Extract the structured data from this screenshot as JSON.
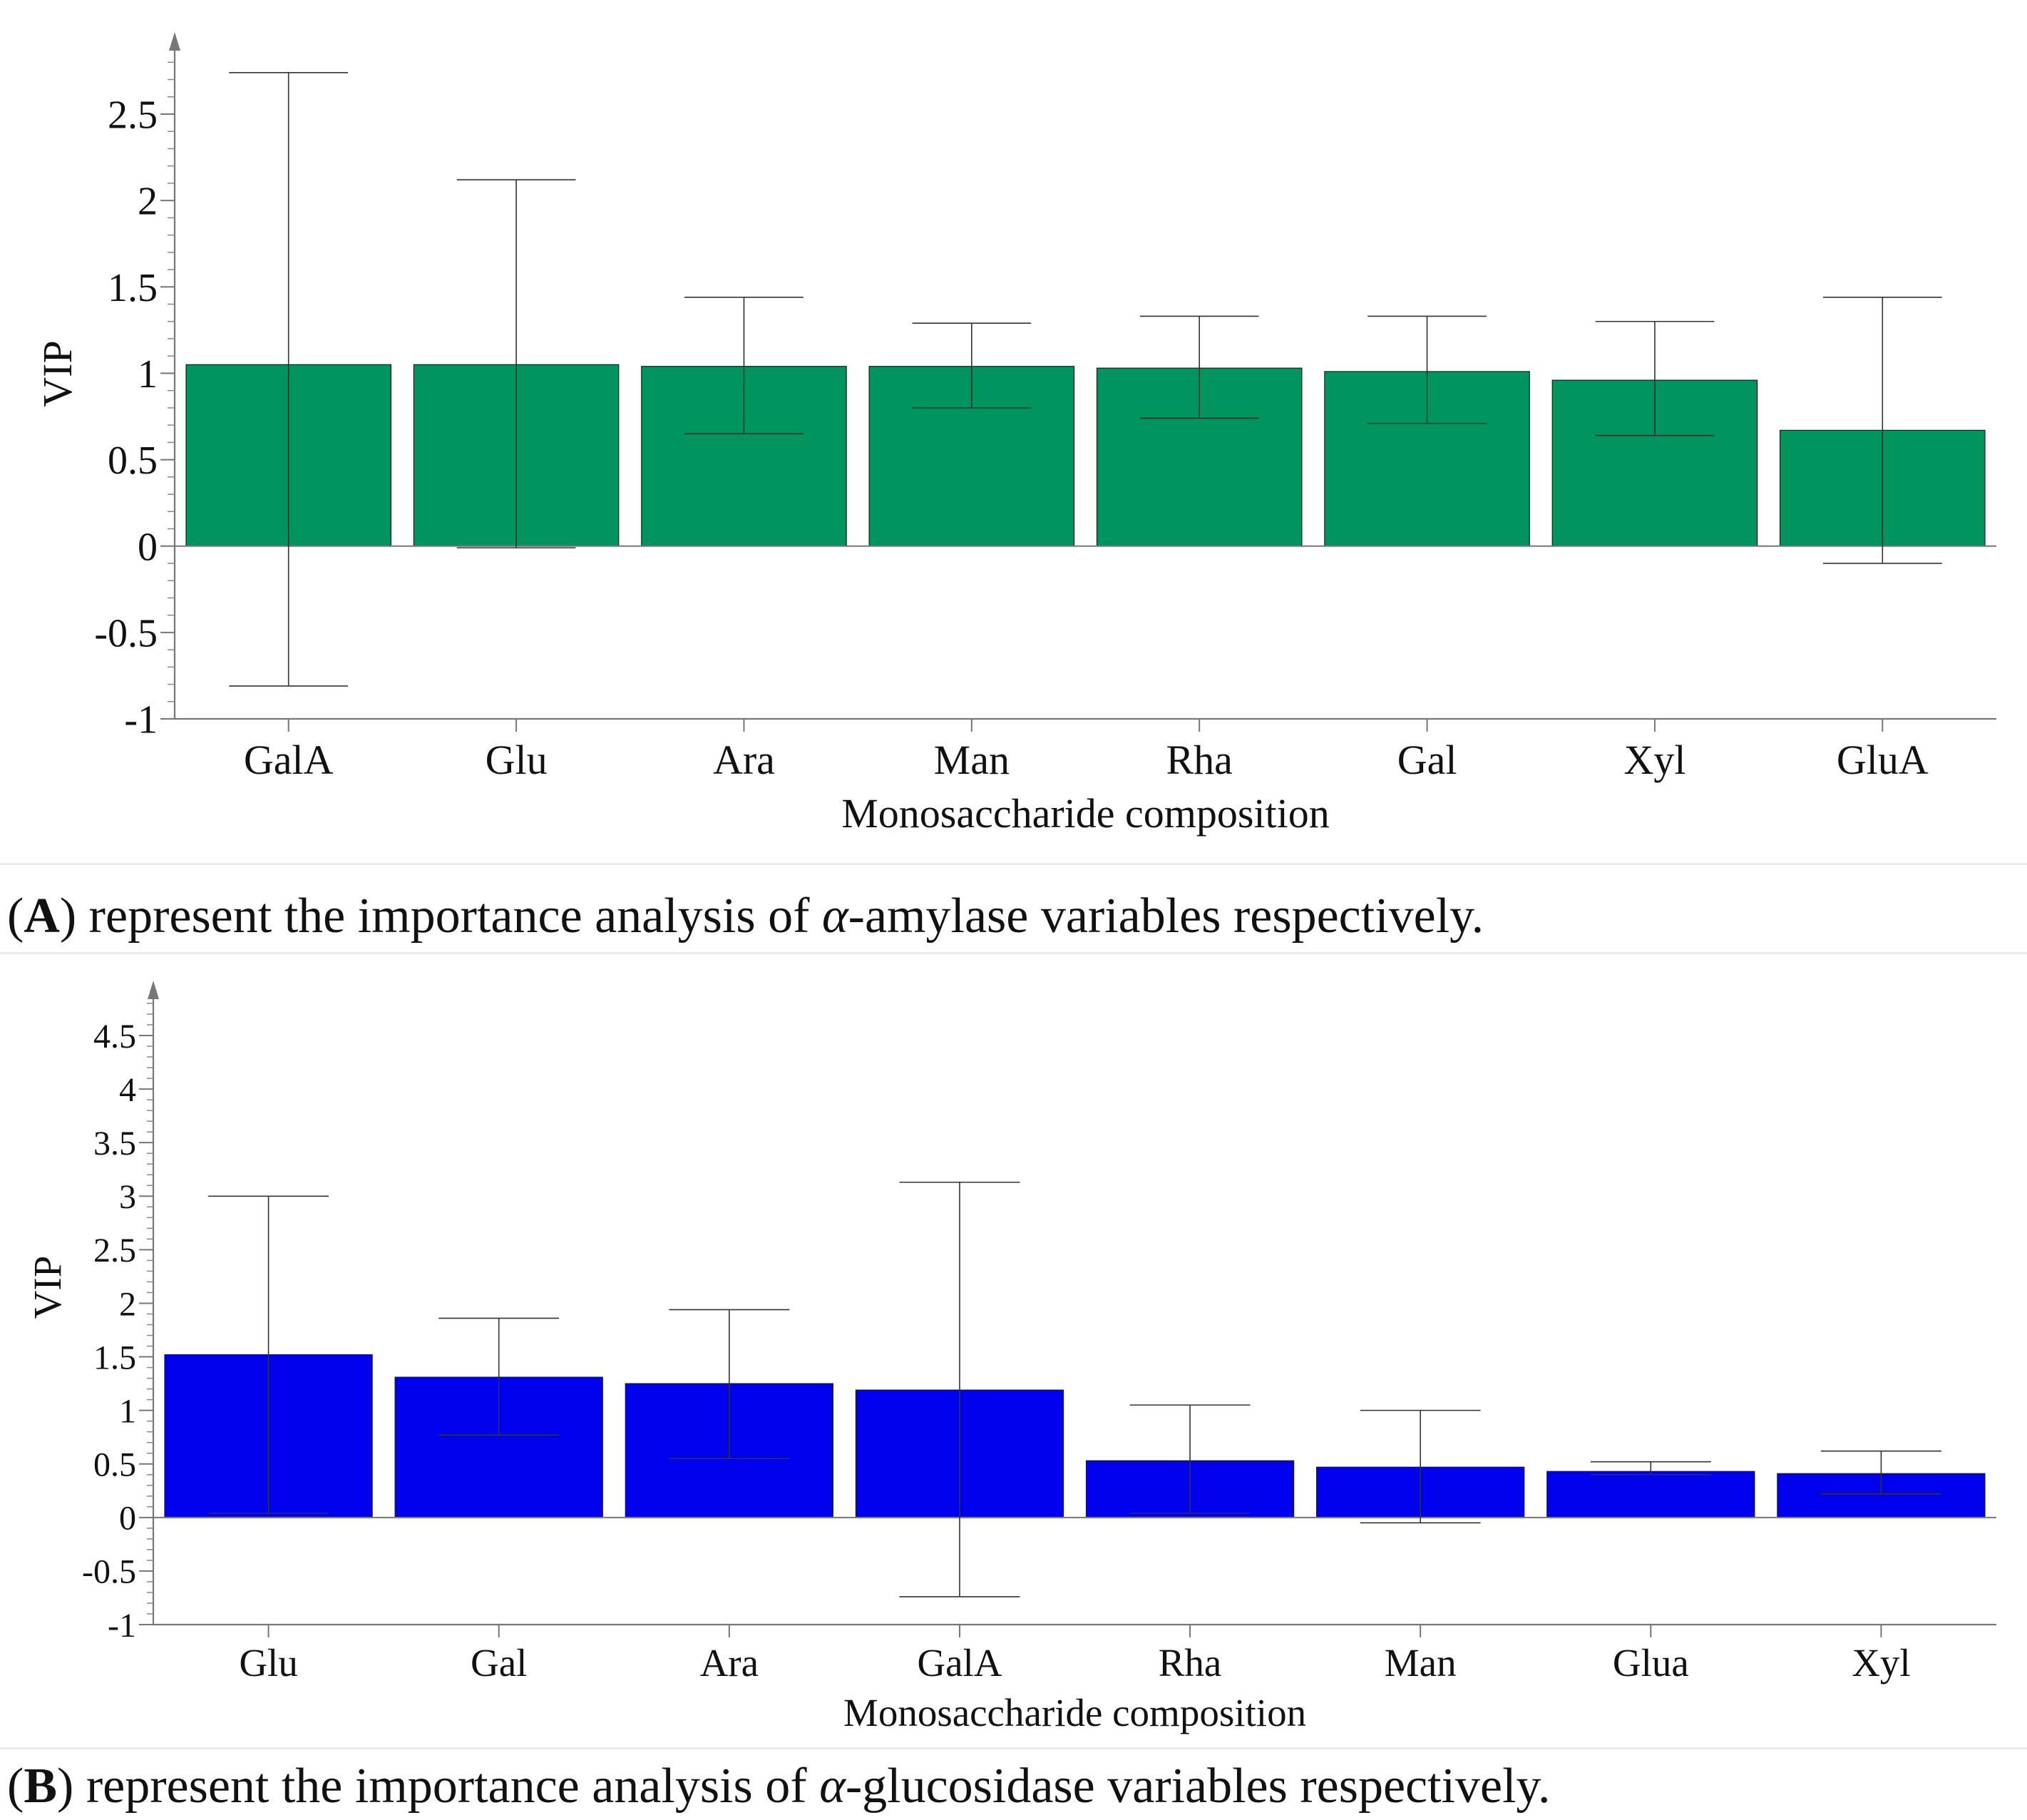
{
  "chart_data": [
    {
      "type": "bar",
      "panel": "A",
      "categories": [
        "GalA",
        "Glu",
        "Ara",
        "Man",
        "Rha",
        "Gal",
        "Xyl",
        "GluA"
      ],
      "values": [
        1.05,
        1.05,
        1.04,
        1.04,
        1.03,
        1.01,
        0.96,
        0.67
      ],
      "error_low": [
        -0.81,
        -0.01,
        0.65,
        0.8,
        0.74,
        0.71,
        0.64,
        -0.1
      ],
      "error_high": [
        2.74,
        2.12,
        1.44,
        1.29,
        1.33,
        1.33,
        1.3,
        1.44
      ],
      "bar_color": "#00955f",
      "xlabel": "Monosaccharide composition",
      "ylabel": "VIP",
      "ylim": [
        -1,
        2.9
      ],
      "yticks": [
        "-1",
        "-0.5",
        "0",
        "0.5",
        "1",
        "1.5",
        "2",
        "2.5"
      ],
      "grid": false
    },
    {
      "type": "bar",
      "panel": "B",
      "categories": [
        "Glu",
        "Gal",
        "Ara",
        "GalA",
        "Rha",
        "Man",
        "Glua",
        "Xyl"
      ],
      "values": [
        1.52,
        1.31,
        1.25,
        1.19,
        0.53,
        0.47,
        0.43,
        0.41
      ],
      "error_low": [
        0.04,
        0.77,
        0.55,
        -0.74,
        0.04,
        -0.05,
        0.4,
        0.22
      ],
      "error_high": [
        3.0,
        1.86,
        1.94,
        3.13,
        1.05,
        1.0,
        0.52,
        0.62
      ],
      "bar_color": "#0000ee",
      "xlabel": "Monosaccharide composition",
      "ylabel": "VIP",
      "ylim": [
        -1,
        4.9
      ],
      "yticks": [
        "-1",
        "-0.5",
        "0",
        "0.5",
        "1",
        "1.5",
        "2",
        "2.5",
        "3",
        "3.5",
        "4",
        "4.5"
      ],
      "grid": false
    }
  ],
  "captions": {
    "a": {
      "label": "A",
      "pre": "(",
      "post": ") represent the importance analysis of ",
      "symbol": "α",
      "rest": "-amylase variables respectively."
    },
    "b": {
      "label": "B",
      "pre": "(",
      "post": ") represent the importance analysis of ",
      "symbol": "α",
      "rest": "-glucosidase variables respectively."
    }
  }
}
